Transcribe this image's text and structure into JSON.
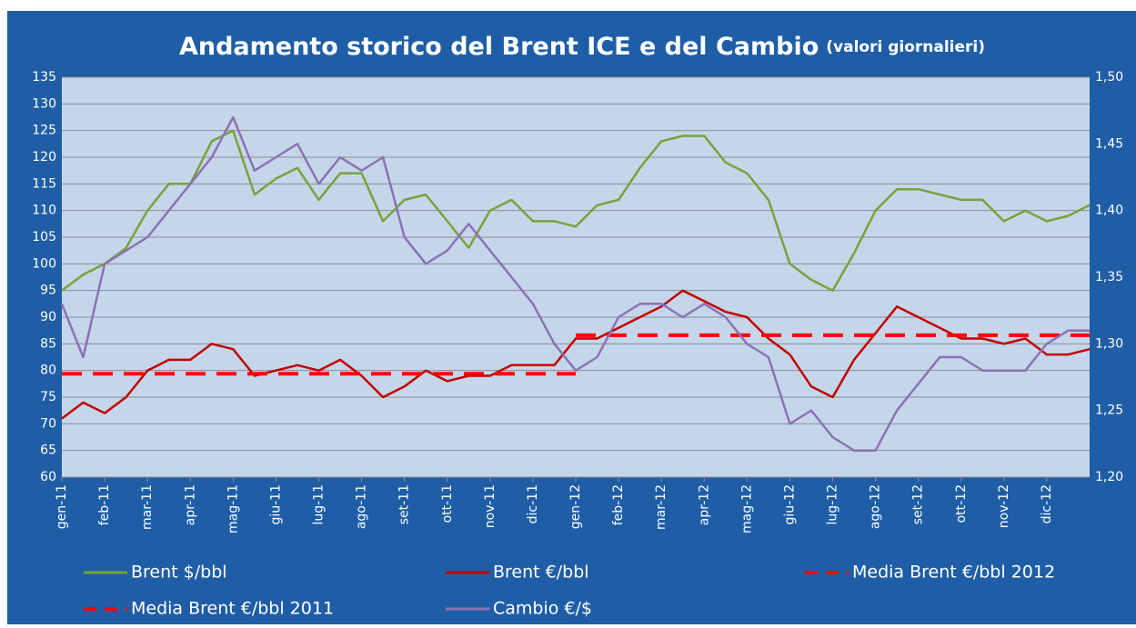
{
  "chart_data": {
    "type": "line",
    "title": "Andamento storico del Brent ICE e del Cambio",
    "subtitle": "(valori giornalieri)",
    "categories": [
      "gen-11",
      null,
      "feb-11",
      null,
      "mar-11",
      null,
      "apr-11",
      null,
      "mag-11",
      null,
      "giu-11",
      null,
      "lug-11",
      null,
      "ago-11",
      null,
      "set-11",
      null,
      "ott-11",
      null,
      "nov-11",
      null,
      "dic-11",
      null,
      "gen-12",
      null,
      "feb-12",
      null,
      "mar-12",
      null,
      "apr-12",
      null,
      "mag-12",
      null,
      "giu-12",
      null,
      "lug-12",
      null,
      "ago-12",
      null,
      "set-12",
      null,
      "ott-12",
      null,
      "nov-12",
      null,
      "dic-12",
      null,
      null
    ],
    "series": [
      {
        "name": "Brent $/bbl",
        "color": "#77a33c",
        "values": [
          95,
          98,
          100,
          103,
          110,
          115,
          115,
          123,
          125,
          113,
          116,
          118,
          112,
          117,
          117,
          108,
          112,
          113,
          108,
          103,
          110,
          112,
          108,
          108,
          107,
          111,
          112,
          118,
          123,
          124,
          124,
          119,
          117,
          112,
          100,
          97,
          95,
          102,
          110,
          114,
          114,
          113,
          112,
          112,
          108,
          110,
          108,
          109,
          111
        ]
      },
      {
        "name": "Brent €/bbl",
        "color": "#c00000",
        "values": [
          71,
          74,
          72,
          75,
          80,
          82,
          82,
          85,
          84,
          79,
          80,
          81,
          80,
          82,
          79,
          75,
          77,
          80,
          78,
          79,
          79,
          81,
          81,
          81,
          86,
          86,
          88,
          90,
          92,
          95,
          93,
          91,
          90,
          86,
          83,
          77,
          75,
          82,
          87,
          92,
          90,
          88,
          86,
          86,
          85,
          86,
          83,
          83,
          84
        ]
      },
      {
        "name": "Media Brent €/bbl 2012",
        "color": "#ff0000",
        "dashed": true,
        "values": [
          null,
          null,
          null,
          null,
          null,
          null,
          null,
          null,
          null,
          null,
          null,
          null,
          null,
          null,
          null,
          null,
          null,
          null,
          null,
          null,
          null,
          null,
          null,
          null,
          86.6,
          86.6,
          86.6,
          86.6,
          86.6,
          86.6,
          86.6,
          86.6,
          86.6,
          86.6,
          86.6,
          86.6,
          86.6,
          86.6,
          86.6,
          86.6,
          86.6,
          86.6,
          86.6,
          86.6,
          86.6,
          86.6,
          86.6,
          86.6,
          86.6
        ]
      },
      {
        "name": "Media Brent €/bbl 2011",
        "color": "#ff0000",
        "dashed": true,
        "values": [
          79.4,
          79.4,
          79.4,
          79.4,
          79.4,
          79.4,
          79.4,
          79.4,
          79.4,
          79.4,
          79.4,
          79.4,
          79.4,
          79.4,
          79.4,
          79.4,
          79.4,
          79.4,
          79.4,
          79.4,
          79.4,
          79.4,
          79.4,
          79.4,
          79.4,
          null,
          null,
          null,
          null,
          null,
          null,
          null,
          null,
          null,
          null,
          null,
          null,
          null,
          null,
          null,
          null,
          null,
          null,
          null,
          null,
          null,
          null,
          null,
          null
        ]
      },
      {
        "name": "Cambio €/$",
        "color": "#8b72b5",
        "axis": "y2",
        "values": [
          1.33,
          1.29,
          1.36,
          1.37,
          1.38,
          1.4,
          1.42,
          1.44,
          1.47,
          1.43,
          1.44,
          1.45,
          1.42,
          1.44,
          1.43,
          1.44,
          1.38,
          1.36,
          1.37,
          1.39,
          1.37,
          1.35,
          1.33,
          1.3,
          1.28,
          1.29,
          1.32,
          1.33,
          1.33,
          1.32,
          1.33,
          1.32,
          1.3,
          1.29,
          1.24,
          1.25,
          1.23,
          1.22,
          1.22,
          1.25,
          1.27,
          1.29,
          1.29,
          1.28,
          1.28,
          1.28,
          1.3,
          1.31,
          1.31
        ]
      }
    ],
    "ylim": [
      60,
      135
    ],
    "yticks": [
      60,
      65,
      70,
      75,
      80,
      85,
      90,
      95,
      100,
      105,
      110,
      115,
      120,
      125,
      130,
      135
    ],
    "y2lim": [
      1.2,
      1.5
    ],
    "y2ticks": [
      {
        "value": 1.2,
        "label": "1,20"
      },
      {
        "value": 1.25,
        "label": "1,25"
      },
      {
        "value": 1.3,
        "label": "1,30"
      },
      {
        "value": 1.35,
        "label": "1,35"
      },
      {
        "value": 1.4,
        "label": "1,40"
      },
      {
        "value": 1.45,
        "label": "1,45"
      },
      {
        "value": 1.5,
        "label": "1,50"
      }
    ],
    "grid": true,
    "legend": "bottom"
  }
}
